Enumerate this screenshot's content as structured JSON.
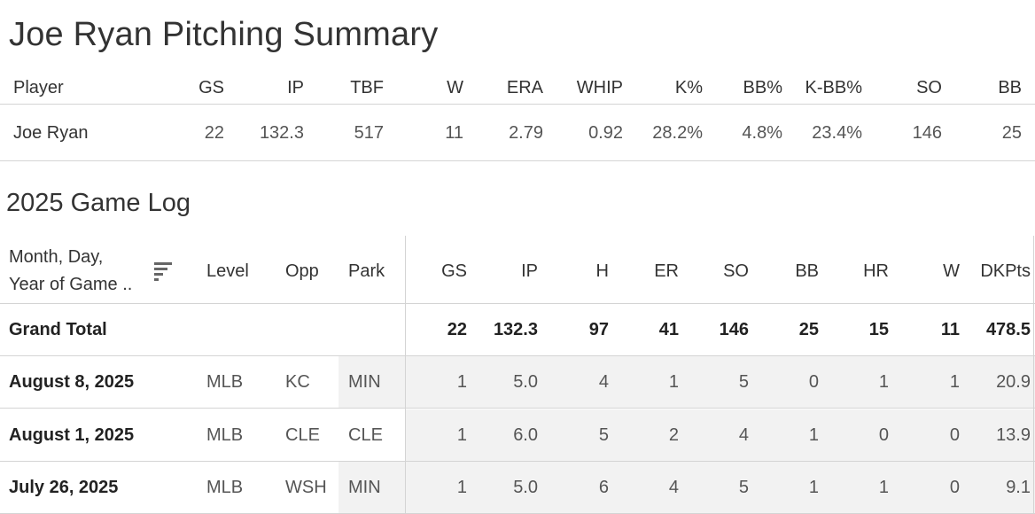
{
  "summary": {
    "title": "Joe Ryan Pitching Summary",
    "headers": [
      "Player",
      "GS",
      "IP",
      "TBF",
      "W",
      "ERA",
      "WHIP",
      "K%",
      "BB%",
      "K-BB%",
      "SO",
      "BB"
    ],
    "row": [
      "Joe Ryan",
      "22",
      "132.3",
      "517",
      "11",
      "2.79",
      "0.92",
      "28.2%",
      "4.8%",
      "23.4%",
      "146",
      "25"
    ]
  },
  "gamelog": {
    "title": "2025 Game Log",
    "date_header_line1": "Month, Day,",
    "date_header_line2": "Year of Game ..",
    "sort_icon": "sort-descending-icon",
    "headers": [
      "Level",
      "Opp",
      "Park",
      "GS",
      "IP",
      "H",
      "ER",
      "SO",
      "BB",
      "HR",
      "W",
      "DKPts"
    ],
    "grand_total": {
      "label": "Grand Total",
      "values": [
        "22",
        "132.3",
        "97",
        "41",
        "146",
        "25",
        "15",
        "11",
        "478.5"
      ]
    },
    "rows": [
      {
        "date": "August 8, 2025",
        "level": "MLB",
        "opp": "KC",
        "park": "MIN",
        "values": [
          "1",
          "5.0",
          "4",
          "1",
          "5",
          "0",
          "1",
          "1",
          "20.9"
        ]
      },
      {
        "date": "August 1, 2025",
        "level": "MLB",
        "opp": "CLE",
        "park": "CLE",
        "values": [
          "1",
          "6.0",
          "5",
          "2",
          "4",
          "1",
          "0",
          "0",
          "13.9"
        ]
      },
      {
        "date": "July 26, 2025",
        "level": "MLB",
        "opp": "WSH",
        "park": "MIN",
        "values": [
          "1",
          "5.0",
          "6",
          "4",
          "5",
          "1",
          "1",
          "0",
          "9.1"
        ]
      }
    ]
  },
  "colors": {
    "shade": "#f2f2f2",
    "rule": "#d4d4d4"
  }
}
